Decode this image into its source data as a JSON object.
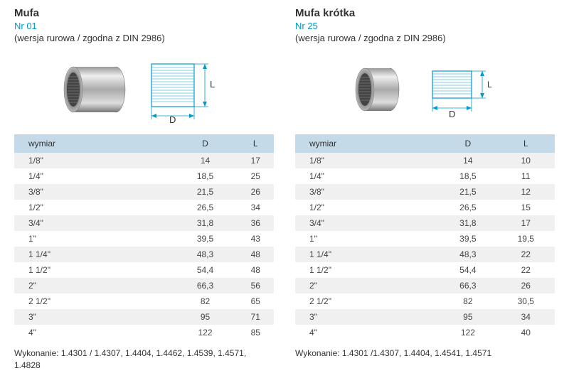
{
  "left": {
    "title": "Mufa",
    "nr": "Nr 01",
    "subtitle": "(wersja rurowa / zgodna z DIN 2986)",
    "headers": [
      "wymiar",
      "D",
      "L"
    ],
    "rows": [
      [
        "1/8\"",
        "14",
        "17"
      ],
      [
        "1/4\"",
        "18,5",
        "25"
      ],
      [
        "3/8\"",
        "21,5",
        "26"
      ],
      [
        "1/2\"",
        "26,5",
        "34"
      ],
      [
        "3/4\"",
        "31,8",
        "36"
      ],
      [
        "1\"",
        "39,5",
        "43"
      ],
      [
        "1 1/4\"",
        "48,3",
        "48"
      ],
      [
        "1 1/2\"",
        "54,4",
        "48"
      ],
      [
        "2\"",
        "66,3",
        "56"
      ],
      [
        "2 1/2\"",
        "82",
        "65"
      ],
      [
        "3\"",
        "95",
        "71"
      ],
      [
        "4\"",
        "122",
        "85"
      ]
    ],
    "footer": "Wykonanie: 1.4301 / 1.4307, 1.4404,\n1.4462, 1.4539, 1.4571, 1.4828",
    "diagram": {
      "D": "D",
      "L": "L"
    }
  },
  "right": {
    "title": "Mufa krótka",
    "nr": "Nr 25",
    "subtitle": "(wersja rurowa / zgodna z DIN 2986)",
    "headers": [
      "wymiar",
      "D",
      "L"
    ],
    "rows": [
      [
        "1/8\"",
        "14",
        "10"
      ],
      [
        "1/4\"",
        "18,5",
        "11"
      ],
      [
        "3/8\"",
        "21,5",
        "12"
      ],
      [
        "1/2\"",
        "26,5",
        "15"
      ],
      [
        "3/4\"",
        "31,8",
        "17"
      ],
      [
        "1\"",
        "39,5",
        "19,5"
      ],
      [
        "1 1/4\"",
        "48,3",
        "22"
      ],
      [
        "1 1/2\"",
        "54,4",
        "22"
      ],
      [
        "2\"",
        "66,3",
        "26"
      ],
      [
        "2 1/2\"",
        "82",
        "30,5"
      ],
      [
        "3\"",
        "95",
        "34"
      ],
      [
        "4\"",
        "122",
        "40"
      ]
    ],
    "footer": "Wykonanie: 1.4301 /1.4307, 1.4404, 1.4541, 1.4571",
    "diagram": {
      "D": "D",
      "L": "L"
    }
  }
}
